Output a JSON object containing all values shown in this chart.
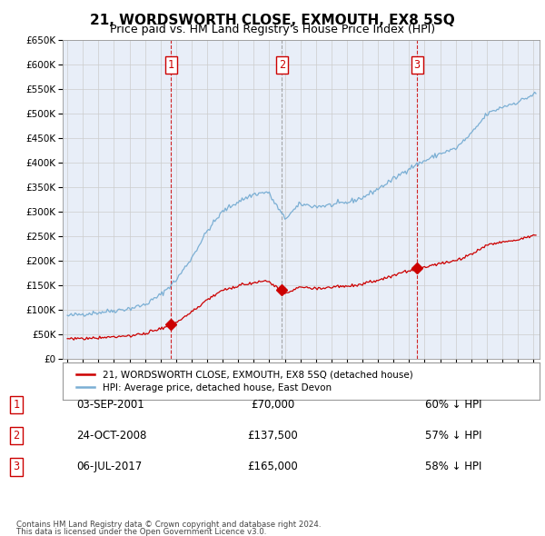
{
  "title": "21, WORDSWORTH CLOSE, EXMOUTH, EX8 5SQ",
  "subtitle": "Price paid vs. HM Land Registry's House Price Index (HPI)",
  "title_fontsize": 11,
  "subtitle_fontsize": 9,
  "ylim": [
    0,
    650000
  ],
  "yticks": [
    0,
    50000,
    100000,
    150000,
    200000,
    250000,
    300000,
    350000,
    400000,
    450000,
    500000,
    550000,
    600000,
    650000
  ],
  "xlim_start": 1994.7,
  "xlim_end": 2025.4,
  "sales": [
    {
      "num": 1,
      "date": "03-SEP-2001",
      "price": 70000,
      "year": 2001.67,
      "pct": "60%",
      "direction": "↓"
    },
    {
      "num": 2,
      "date": "24-OCT-2008",
      "price": 137500,
      "year": 2008.81,
      "pct": "57%",
      "direction": "↓"
    },
    {
      "num": 3,
      "date": "06-JUL-2017",
      "price": 165000,
      "year": 2017.51,
      "pct": "58%",
      "direction": "↓"
    }
  ],
  "legend_label_red": "21, WORDSWORTH CLOSE, EXMOUTH, EX8 5SQ (detached house)",
  "legend_label_blue": "HPI: Average price, detached house, East Devon",
  "footer1": "Contains HM Land Registry data © Crown copyright and database right 2024.",
  "footer2": "This data is licensed under the Open Government Licence v3.0.",
  "red_color": "#cc0000",
  "blue_color": "#7bafd4",
  "grid_color": "#cccccc",
  "background_color": "#e8eef8",
  "vline_colors": [
    "#cc0000",
    "#999999",
    "#cc0000"
  ]
}
